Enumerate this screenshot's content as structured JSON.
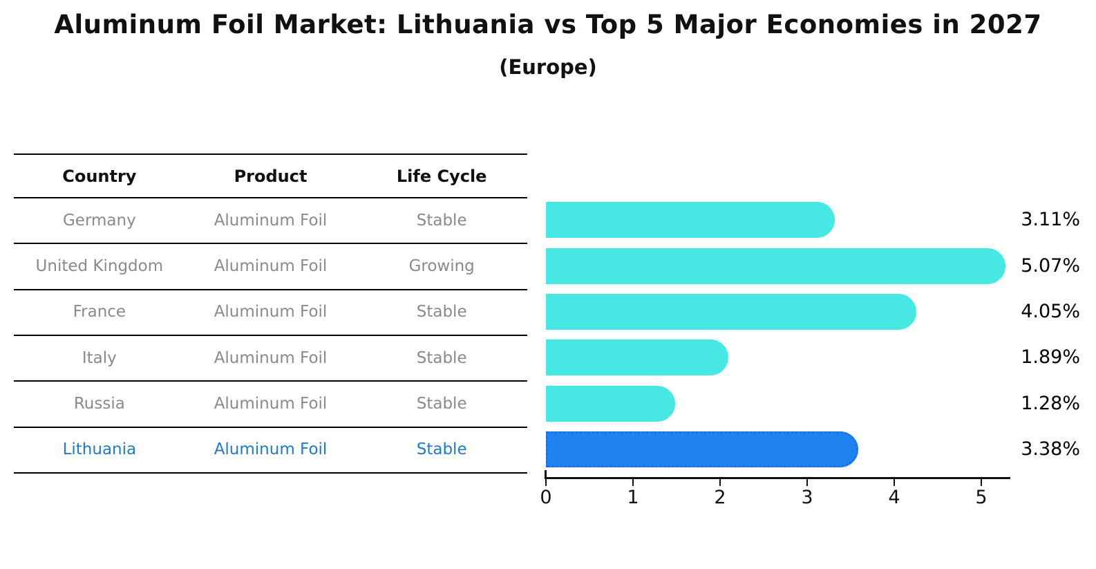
{
  "title": "Aluminum Foil Market: Lithuania vs Top 5 Major Economies in 2027",
  "subtitle": "(Europe)",
  "table": {
    "headers": [
      "Country",
      "Product",
      "Life Cycle"
    ],
    "rows": [
      {
        "country": "Germany",
        "product": "Aluminum Foil",
        "life_cycle": "Stable",
        "highlight": false
      },
      {
        "country": "United Kingdom",
        "product": "Aluminum Foil",
        "life_cycle": "Growing",
        "highlight": false
      },
      {
        "country": "France",
        "product": "Aluminum Foil",
        "life_cycle": "Stable",
        "highlight": false
      },
      {
        "country": "Italy",
        "product": "Aluminum Foil",
        "life_cycle": "Stable",
        "highlight": false
      },
      {
        "country": "Russia",
        "product": "Aluminum Foil",
        "life_cycle": "Stable",
        "highlight": false
      },
      {
        "country": "Lithuania",
        "product": "Aluminum Foil",
        "life_cycle": "Stable",
        "highlight": true
      }
    ]
  },
  "chart_data": {
    "type": "bar",
    "orientation": "horizontal",
    "title": "Aluminum Foil Market: Lithuania vs Top 5 Major Economies in 2027",
    "subtitle": "(Europe)",
    "categories": [
      "Germany",
      "United Kingdom",
      "France",
      "Italy",
      "Russia",
      "Lithuania"
    ],
    "values": [
      3.11,
      5.07,
      4.05,
      1.89,
      1.28,
      3.38
    ],
    "value_labels": [
      "3.11%",
      "5.07%",
      "4.05%",
      "1.89%",
      "1.28%",
      "3.38%"
    ],
    "highlight_index": 5,
    "xlim": [
      0,
      5.3
    ],
    "xticks": [
      0,
      1,
      2,
      3,
      4,
      5
    ],
    "grid": false,
    "legend": false,
    "colors": {
      "bar": "#47E8E3",
      "highlight_bar": "#1E82F0",
      "highlight_border": "#1B6FDC",
      "highlight_text": "#1F7ACD",
      "row_text": "#8A8A8A",
      "value_text": "#000000",
      "axis": "#111111"
    }
  }
}
